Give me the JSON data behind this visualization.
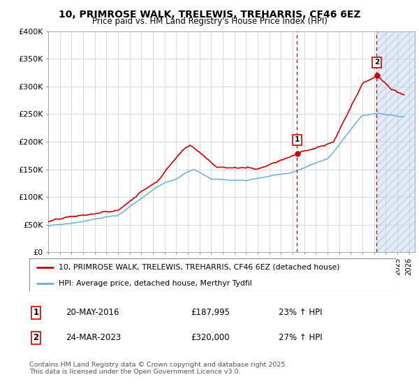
{
  "title": "10, PRIMROSE WALK, TRELEWIS, TREHARRIS, CF46 6EZ",
  "subtitle": "Price paid vs. HM Land Registry's House Price Index (HPI)",
  "legend_line1": "10, PRIMROSE WALK, TRELEWIS, TREHARRIS, CF46 6EZ (detached house)",
  "legend_line2": "HPI: Average price, detached house, Merthyr Tydfil",
  "footer": "Contains HM Land Registry data © Crown copyright and database right 2025.\nThis data is licensed under the Open Government Licence v3.0.",
  "sale1_date": "20-MAY-2016",
  "sale1_price": "£187,995",
  "sale1_hpi": "23% ↑ HPI",
  "sale2_date": "24-MAR-2023",
  "sale2_price": "£320,000",
  "sale2_hpi": "27% ↑ HPI",
  "hpi_color": "#6baed6",
  "price_color": "#cc0000",
  "vline_color": "#cc0000",
  "bg_future_color": "#dce9f5",
  "grid_color": "#c8d4e0",
  "ylim": [
    0,
    400000
  ],
  "xlim_start": 1995.0,
  "xlim_end": 2026.5,
  "sale1_x": 2016.38,
  "sale2_x": 2023.23,
  "hpi_noise_scale": 500,
  "price_noise_scale": 800
}
